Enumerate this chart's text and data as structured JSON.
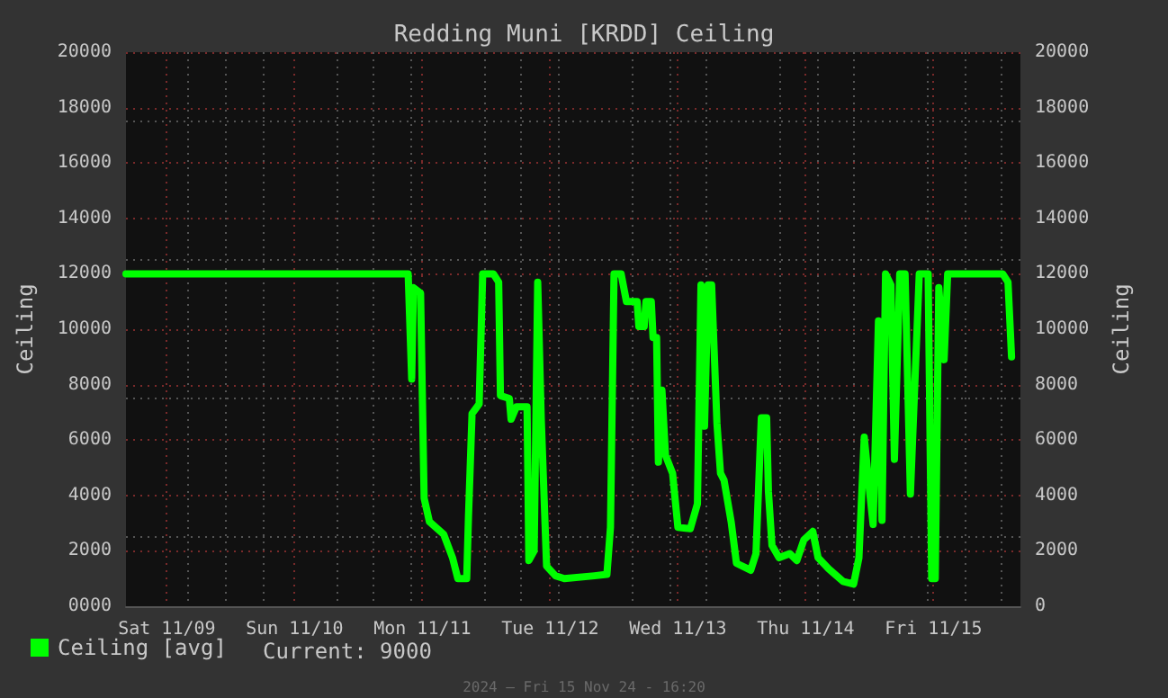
{
  "chart_data": {
    "type": "line",
    "title": "Redding Muni [KRDD] Ceiling",
    "ylabel": "Ceiling",
    "y2label": "Ceiling",
    "x": [
      "2024-11-08T16:20",
      "2024-11-10T21:20",
      "2024-11-10T22:00",
      "2024-11-10T22:20",
      "2024-11-10T23:40",
      "2024-11-11T00:20",
      "2024-11-11T01:20",
      "2024-11-11T04:00",
      "2024-11-11T05:40",
      "2024-11-11T06:40",
      "2024-11-11T08:20",
      "2024-11-11T08:40",
      "2024-11-11T09:20",
      "2024-11-11T10:40",
      "2024-11-11T11:20",
      "2024-11-11T13:20",
      "2024-11-11T14:20",
      "2024-11-11T14:40",
      "2024-11-11T16:20",
      "2024-11-11T16:40",
      "2024-11-11T17:40",
      "2024-11-11T19:40",
      "2024-11-11T20:00",
      "2024-11-11T21:00",
      "2024-11-11T21:40",
      "2024-11-11T22:20",
      "2024-11-11T23:20",
      "2024-11-12T01:00",
      "2024-11-12T02:40",
      "2024-11-12T08:20",
      "2024-11-12T10:40",
      "2024-11-12T11:20",
      "2024-11-12T12:00",
      "2024-11-12T13:20",
      "2024-11-12T14:20",
      "2024-11-12T16:20",
      "2024-11-12T16:40",
      "2024-11-12T17:40",
      "2024-11-12T18:00",
      "2024-11-12T19:00",
      "2024-11-12T19:20",
      "2024-11-12T20:00",
      "2024-11-12T20:20",
      "2024-11-12T21:00",
      "2024-11-12T21:40",
      "2024-11-12T23:00",
      "2024-11-13T00:00",
      "2024-11-13T02:20",
      "2024-11-13T03:40",
      "2024-11-13T04:20",
      "2024-11-13T05:00",
      "2024-11-13T05:40",
      "2024-11-13T06:20",
      "2024-11-13T07:20",
      "2024-11-13T08:00",
      "2024-11-13T08:40",
      "2024-11-13T10:00",
      "2024-11-13T11:00",
      "2024-11-13T13:40",
      "2024-11-13T14:40",
      "2024-11-13T15:40",
      "2024-11-13T16:40",
      "2024-11-13T17:00",
      "2024-11-13T17:40",
      "2024-11-13T19:00",
      "2024-11-13T21:00",
      "2024-11-13T22:20",
      "2024-11-13T23:40",
      "2024-11-14T01:20",
      "2024-11-14T02:20",
      "2024-11-14T04:20",
      "2024-11-14T07:00",
      "2024-11-14T09:00",
      "2024-11-14T10:00",
      "2024-11-14T11:00",
      "2024-11-14T12:00",
      "2024-11-14T12:40",
      "2024-11-14T13:40",
      "2024-11-14T14:20",
      "2024-11-14T15:00",
      "2024-11-14T16:00",
      "2024-11-14T16:40",
      "2024-11-14T17:40",
      "2024-11-14T18:40",
      "2024-11-14T19:40",
      "2024-11-14T21:20",
      "2024-11-14T23:00",
      "2024-11-14T23:40",
      "2024-11-15T00:20",
      "2024-11-15T01:00",
      "2024-11-15T02:00",
      "2024-11-15T02:40",
      "2024-11-15T13:00",
      "2024-11-15T14:00",
      "2024-11-15T14:40"
    ],
    "series": [
      {
        "name": "Ceiling [avg]",
        "color": "#00ff00",
        "values": [
          12000,
          12000,
          8200,
          11500,
          11300,
          3900,
          3050,
          2600,
          1750,
          1000,
          1000,
          3250,
          6950,
          7300,
          12000,
          12000,
          11700,
          7600,
          7500,
          6750,
          7200,
          7200,
          1650,
          2000,
          11700,
          6750,
          1450,
          1100,
          1000,
          1100,
          1150,
          2850,
          12000,
          12000,
          11000,
          11000,
          10100,
          10100,
          11000,
          11000,
          9700,
          9700,
          5200,
          7800,
          5450,
          4800,
          2850,
          2800,
          3700,
          11600,
          6500,
          11600,
          11600,
          6600,
          4800,
          4550,
          3050,
          1550,
          1300,
          1900,
          6800,
          6800,
          4150,
          2200,
          1750,
          1900,
          1650,
          2400,
          2700,
          1750,
          1350,
          900,
          800,
          1750,
          6100,
          4150,
          2950,
          10300,
          3100,
          12000,
          11600,
          5300,
          12000,
          12000,
          4050,
          12000,
          12000,
          1000,
          1000,
          11500,
          8900,
          12000,
          12000,
          11700,
          9000
        ]
      }
    ],
    "xlim": [
      "2024-11-08T16:20",
      "2024-11-15T16:20"
    ],
    "xticks": [
      {
        "value": "2024-11-09T00:00",
        "label": "Sat 11/09"
      },
      {
        "value": "2024-11-10T00:00",
        "label": "Sun 11/10"
      },
      {
        "value": "2024-11-11T00:00",
        "label": "Mon 11/11"
      },
      {
        "value": "2024-11-12T00:00",
        "label": "Tue 11/12"
      },
      {
        "value": "2024-11-13T00:00",
        "label": "Wed 11/13"
      },
      {
        "value": "2024-11-14T00:00",
        "label": "Thu 11/14"
      },
      {
        "value": "2024-11-15T00:00",
        "label": "Fri 11/15"
      }
    ],
    "ylim": [
      0,
      20000
    ],
    "yticks": [
      {
        "value": 0,
        "label": "0000"
      },
      2000,
      4000,
      6000,
      8000,
      10000,
      12000,
      14000,
      16000,
      18000,
      20000
    ],
    "y2lim": [
      0,
      20000
    ],
    "y2ticks": [
      0,
      2000,
      4000,
      6000,
      8000,
      10000,
      12000,
      14000,
      16000,
      18000,
      20000
    ],
    "grid": true,
    "legend": "bottom left",
    "marker": "none",
    "line_style": "solid",
    "annotations": [
      "Current: 9000",
      "2024 — Fri 15 Nov 24 - 16:20"
    ]
  }
}
